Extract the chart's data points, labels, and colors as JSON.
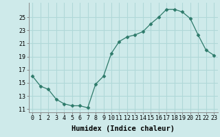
{
  "x": [
    0,
    1,
    2,
    3,
    4,
    5,
    6,
    7,
    8,
    9,
    10,
    11,
    12,
    13,
    14,
    15,
    16,
    17,
    18,
    19,
    20,
    21,
    22,
    23
  ],
  "y": [
    16.0,
    14.5,
    14.0,
    12.5,
    11.8,
    11.5,
    11.5,
    11.2,
    14.8,
    16.0,
    19.5,
    21.3,
    22.0,
    22.3,
    22.8,
    24.0,
    25.0,
    26.2,
    26.2,
    25.8,
    24.8,
    22.3,
    20.0,
    19.2
  ],
  "line_color": "#2d7a6a",
  "marker": "D",
  "marker_size": 2.5,
  "bg_color": "#ceeaea",
  "grid_color": "#b0d8d8",
  "xlabel": "Humidex (Indice chaleur)",
  "ylim": [
    10.5,
    27.2
  ],
  "xlim": [
    -0.5,
    23.5
  ],
  "yticks": [
    11,
    13,
    15,
    17,
    19,
    21,
    23,
    25
  ],
  "xticks": [
    0,
    1,
    2,
    3,
    4,
    5,
    6,
    7,
    8,
    9,
    10,
    11,
    12,
    13,
    14,
    15,
    16,
    17,
    18,
    19,
    20,
    21,
    22,
    23
  ],
  "font_size_label": 7.5,
  "font_size_tick": 6.0
}
